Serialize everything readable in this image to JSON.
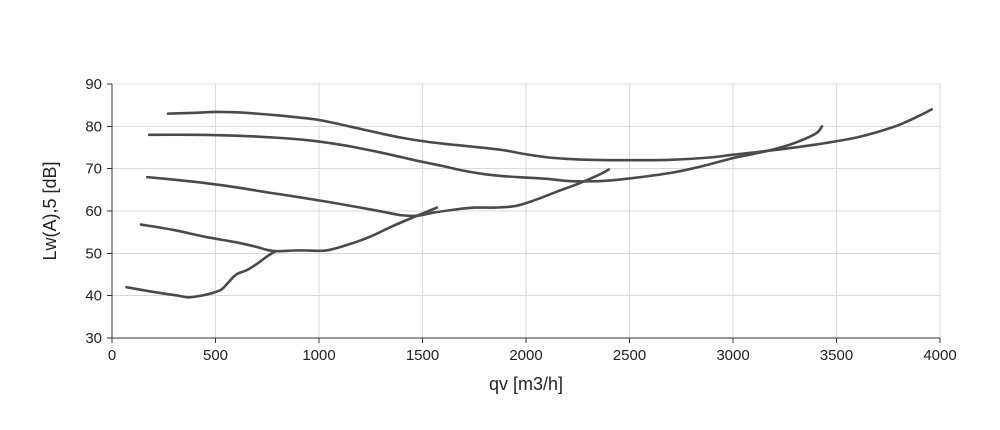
{
  "chart_data": {
    "type": "line",
    "xlabel": "qv [m3/h]",
    "ylabel": "Lw(A),5 [dB]",
    "xlim": [
      0,
      4000
    ],
    "ylim": [
      30,
      90
    ],
    "xticks": [
      0,
      500,
      1000,
      1500,
      2000,
      2500,
      3000,
      3500,
      4000
    ],
    "yticks": [
      30,
      40,
      50,
      60,
      70,
      80,
      90
    ],
    "grid": true,
    "legend": "none",
    "line_color": "#4a4a4a",
    "series": [
      {
        "points": [
          [
            270,
            83
          ],
          [
            400,
            83.2
          ],
          [
            500,
            83.4
          ],
          [
            600,
            83.3
          ],
          [
            700,
            83
          ],
          [
            800,
            82.6
          ],
          [
            900,
            82.1
          ],
          [
            1000,
            81.5
          ],
          [
            1100,
            80.5
          ],
          [
            1200,
            79.4
          ],
          [
            1300,
            78.3
          ],
          [
            1400,
            77.3
          ],
          [
            1500,
            76.5
          ],
          [
            1600,
            75.9
          ],
          [
            1700,
            75.4
          ],
          [
            1800,
            74.9
          ],
          [
            1900,
            74.3
          ],
          [
            2000,
            73.4
          ],
          [
            2100,
            72.7
          ],
          [
            2200,
            72.3
          ],
          [
            2300,
            72.1
          ],
          [
            2500,
            72
          ],
          [
            2700,
            72.1
          ],
          [
            2900,
            72.7
          ],
          [
            3000,
            73.3
          ],
          [
            3200,
            74.4
          ],
          [
            3400,
            75.7
          ],
          [
            3600,
            77.4
          ],
          [
            3700,
            78.7
          ],
          [
            3800,
            80.3
          ],
          [
            3900,
            82.5
          ],
          [
            3960,
            84
          ]
        ]
      },
      {
        "points": [
          [
            180,
            78
          ],
          [
            400,
            78
          ],
          [
            600,
            77.8
          ],
          [
            800,
            77.3
          ],
          [
            950,
            76.7
          ],
          [
            1100,
            75.7
          ],
          [
            1200,
            74.8
          ],
          [
            1300,
            73.8
          ],
          [
            1400,
            72.7
          ],
          [
            1500,
            71.6
          ],
          [
            1600,
            70.6
          ],
          [
            1700,
            69.5
          ],
          [
            1800,
            68.7
          ],
          [
            1900,
            68.2
          ],
          [
            2000,
            67.9
          ],
          [
            2100,
            67.6
          ],
          [
            2200,
            67.1
          ],
          [
            2300,
            67
          ],
          [
            2400,
            67.2
          ],
          [
            2500,
            67.7
          ],
          [
            2600,
            68.3
          ],
          [
            2700,
            69
          ],
          [
            2800,
            70
          ],
          [
            2900,
            71.2
          ],
          [
            3000,
            72.5
          ],
          [
            3100,
            73.5
          ],
          [
            3200,
            74.6
          ],
          [
            3300,
            76.1
          ],
          [
            3400,
            78.3
          ],
          [
            3430,
            80
          ]
        ]
      },
      {
        "points": [
          [
            170,
            68
          ],
          [
            300,
            67.4
          ],
          [
            450,
            66.6
          ],
          [
            600,
            65.6
          ],
          [
            750,
            64.4
          ],
          [
            900,
            63.3
          ],
          [
            1050,
            62.1
          ],
          [
            1200,
            60.8
          ],
          [
            1300,
            59.9
          ],
          [
            1400,
            59
          ],
          [
            1480,
            58.9
          ],
          [
            1550,
            59.6
          ],
          [
            1650,
            60.3
          ],
          [
            1750,
            60.8
          ],
          [
            1850,
            60.8
          ],
          [
            1950,
            61.2
          ],
          [
            2050,
            62.7
          ],
          [
            2150,
            64.6
          ],
          [
            2250,
            66.4
          ],
          [
            2350,
            68.5
          ],
          [
            2400,
            69.8
          ]
        ]
      },
      {
        "points": [
          [
            140,
            56.8
          ],
          [
            300,
            55.5
          ],
          [
            450,
            53.9
          ],
          [
            600,
            52.6
          ],
          [
            700,
            51.5
          ],
          [
            750,
            50.8
          ],
          [
            800,
            50.5
          ],
          [
            900,
            50.7
          ],
          [
            1000,
            50.6
          ],
          [
            1050,
            50.8
          ],
          [
            1150,
            52.2
          ],
          [
            1250,
            54
          ],
          [
            1350,
            56.3
          ],
          [
            1450,
            58.4
          ],
          [
            1530,
            60
          ],
          [
            1570,
            60.8
          ]
        ]
      },
      {
        "points": [
          [
            70,
            42
          ],
          [
            150,
            41.3
          ],
          [
            250,
            40.5
          ],
          [
            320,
            40
          ],
          [
            370,
            39.6
          ],
          [
            430,
            40
          ],
          [
            490,
            40.7
          ],
          [
            530,
            41.5
          ],
          [
            560,
            43
          ],
          [
            600,
            45
          ],
          [
            650,
            46
          ],
          [
            700,
            47.5
          ],
          [
            750,
            49.3
          ],
          [
            790,
            50.5
          ]
        ]
      }
    ]
  }
}
